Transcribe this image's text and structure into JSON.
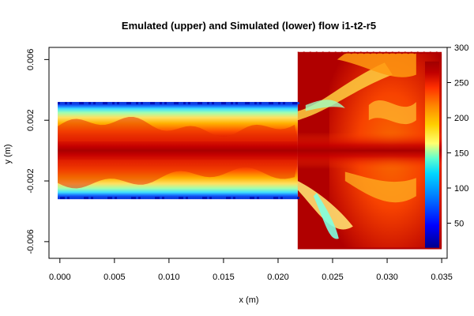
{
  "chart_data": {
    "type": "heatmap",
    "title": "Emulated (upper) and Simulated (lower) flow i1-t2-r5",
    "xlabel": "x (m)",
    "ylabel": "y (m)",
    "xlim": [
      -0.001,
      0.0355
    ],
    "ylim": [
      -0.0071,
      0.0068
    ],
    "x_ticks": [
      {
        "value": 0.0,
        "label": "0.000"
      },
      {
        "value": 0.005,
        "label": "0.005"
      },
      {
        "value": 0.01,
        "label": "0.010"
      },
      {
        "value": 0.015,
        "label": "0.015"
      },
      {
        "value": 0.02,
        "label": "0.020"
      },
      {
        "value": 0.025,
        "label": "0.025"
      },
      {
        "value": 0.03,
        "label": "0.030"
      },
      {
        "value": 0.035,
        "label": "0.035"
      }
    ],
    "y_ticks": [
      {
        "value": -0.006,
        "label": "-0.006"
      },
      {
        "value": -0.002,
        "label": "-0.002"
      },
      {
        "value": 0.002,
        "label": "0.002"
      },
      {
        "value": 0.006,
        "label": "0.006"
      }
    ],
    "channel": {
      "x_range": [
        -0.0002,
        0.0218
      ],
      "y_range": [
        -0.0032,
        0.0032
      ]
    },
    "chamber": {
      "x_range": [
        0.0218,
        0.035
      ],
      "y_range": [
        -0.0065,
        0.0065
      ]
    },
    "colorbar": {
      "range": [
        0,
        300
      ],
      "ticks": [
        {
          "value": 50,
          "label": "50"
        },
        {
          "value": 100,
          "label": "100"
        },
        {
          "value": 150,
          "label": "150"
        },
        {
          "value": 200,
          "label": "200"
        },
        {
          "value": 250,
          "label": "250"
        },
        {
          "value": 300,
          "label": "300"
        }
      ],
      "colors": [
        "#00008b",
        "#0000ff",
        "#0080ff",
        "#00d8ff",
        "#60ffd0",
        "#ffff70",
        "#ffd000",
        "#ff8800",
        "#ff3000",
        "#c00000",
        "#a00000"
      ],
      "min_value": 15,
      "max_value": 280
    }
  }
}
